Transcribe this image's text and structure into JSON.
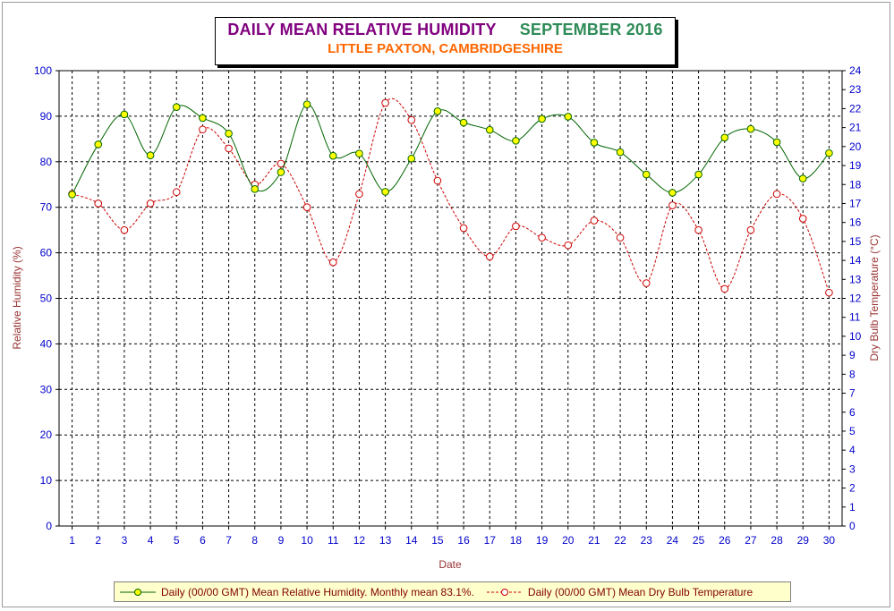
{
  "title": {
    "main": "DAILY MEAN RELATIVE HUMIDITY",
    "month": "SEPTEMBER 2016",
    "subtitle": "LITTLE PAXTON, CAMBRIDGESHIRE"
  },
  "colors": {
    "humidity_line": "#006400",
    "humidity_marker": "#ffff00",
    "temperature_line": "#cc0000",
    "background": "#ffffff",
    "grid": "#000000",
    "tick_labels": "#0000cc",
    "axis_titles": "#993333",
    "legend_bg": "#ffffcc"
  },
  "chart_data": {
    "type": "line",
    "title": "DAILY MEAN RELATIVE HUMIDITY SEPTEMBER 2016",
    "subtitle": "LITTLE PAXTON, CAMBRIDGESHIRE",
    "xlabel": "Date",
    "ylabel": "Relative Humidity (%)",
    "y2label": "Dry Bulb Temperature (°C)",
    "x": [
      1,
      2,
      3,
      4,
      5,
      6,
      7,
      8,
      9,
      10,
      11,
      12,
      13,
      14,
      15,
      16,
      17,
      18,
      19,
      20,
      21,
      22,
      23,
      24,
      25,
      26,
      27,
      28,
      29,
      30
    ],
    "x_tick_labels": [
      "1",
      "2",
      "3",
      "4",
      "5",
      "6",
      "7",
      "8",
      "9",
      "10",
      "11",
      "12",
      "13",
      "14",
      "15",
      "16",
      "17",
      "18",
      "19",
      "20",
      "21",
      "22",
      "23",
      "24",
      "25",
      "26",
      "27",
      "28",
      "29",
      "30"
    ],
    "xlim": [
      0.5,
      30.5
    ],
    "ylim": [
      0,
      100
    ],
    "y_ticks": [
      0,
      10,
      20,
      30,
      40,
      50,
      60,
      70,
      80,
      90,
      100
    ],
    "y2lim": [
      0,
      24
    ],
    "y2_ticks": [
      0,
      1,
      2,
      3,
      4,
      5,
      6,
      7,
      8,
      9,
      10,
      11,
      12,
      13,
      14,
      15,
      16,
      17,
      18,
      19,
      20,
      21,
      22,
      23,
      24
    ],
    "grid": true,
    "legend_position": "bottom",
    "series": [
      {
        "name": "Daily (00/00 GMT) Mean Relative Humidity. Monthly mean 83.1%.",
        "axis": "left",
        "style": "solid",
        "values": [
          72.8,
          83.8,
          90.4,
          81.4,
          92.0,
          89.6,
          86.2,
          74.0,
          77.7,
          92.6,
          81.3,
          81.8,
          73.4,
          80.7,
          91.1,
          88.6,
          87.0,
          84.6,
          89.4,
          89.9,
          84.2,
          82.1,
          77.2,
          73.2,
          77.2,
          85.3,
          87.2,
          84.3,
          76.3,
          81.9
        ]
      },
      {
        "name": "Daily (00/00 GMT) Mean Dry Bulb Temperature",
        "axis": "right",
        "style": "dashed",
        "values": [
          17.5,
          17.0,
          15.6,
          17.0,
          17.6,
          20.9,
          19.9,
          18.0,
          19.1,
          16.8,
          13.9,
          17.5,
          22.3,
          21.4,
          18.2,
          15.7,
          14.2,
          15.8,
          15.2,
          14.8,
          16.1,
          15.2,
          12.8,
          16.9,
          15.6,
          12.5,
          15.6,
          17.5,
          16.2,
          12.3
        ]
      }
    ]
  },
  "legend": {
    "humidity_label": "Daily (00/00 GMT) Mean Relative Humidity. Monthly mean 83.1%.",
    "temperature_label": "Daily (00/00 GMT) Mean Dry Bulb Temperature"
  }
}
